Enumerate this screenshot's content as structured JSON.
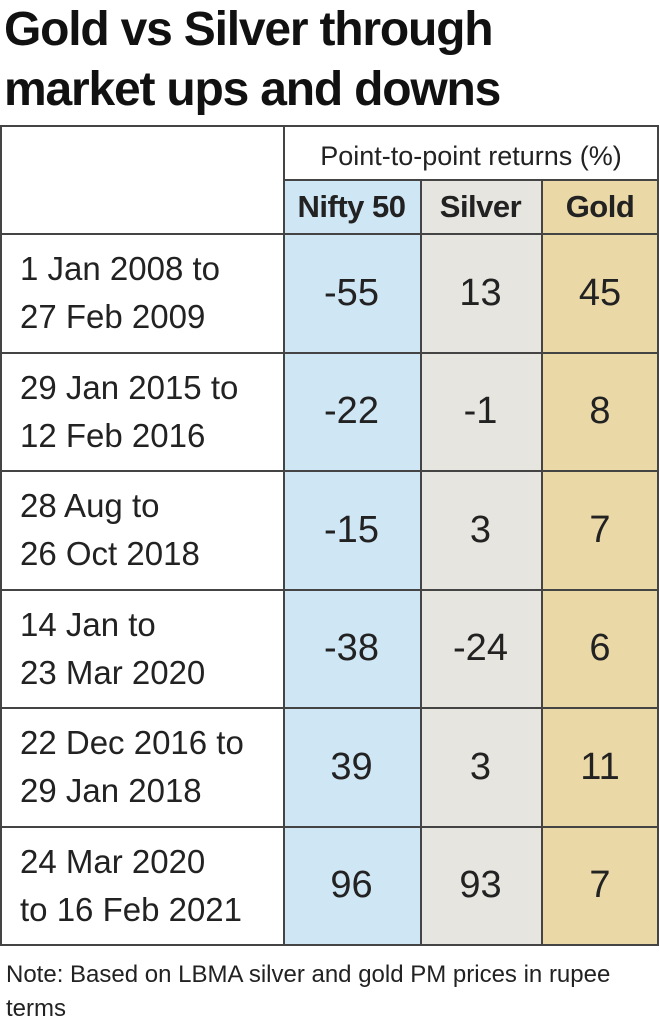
{
  "title": [
    "Gold vs Silver through",
    "market ups and downs"
  ],
  "subheader": "Point-to-point returns (%)",
  "columns": [
    "Nifty 50",
    "Silver",
    "Gold"
  ],
  "colors": {
    "nifty": "#cfe6f5",
    "silver": "#e7e5df",
    "gold": "#ead8a7",
    "border": "#444444"
  },
  "rows": [
    {
      "period": [
        "1 Jan 2008 to",
        "27 Feb 2009"
      ],
      "nifty": "-55",
      "silver": "13",
      "gold": "45"
    },
    {
      "period": [
        "29 Jan 2015 to",
        "12 Feb 2016"
      ],
      "nifty": "-22",
      "silver": "-1",
      "gold": "8"
    },
    {
      "period": [
        "28 Aug to",
        "26 Oct 2018"
      ],
      "nifty": "-15",
      "silver": "3",
      "gold": "7"
    },
    {
      "period": [
        "14 Jan to",
        "23 Mar 2020"
      ],
      "nifty": "-38",
      "silver": "-24",
      "gold": "6"
    },
    {
      "period": [
        "22 Dec 2016 to",
        "29 Jan 2018"
      ],
      "nifty": "39",
      "silver": "3",
      "gold": "11"
    },
    {
      "period": [
        "24 Mar 2020",
        "to 16 Feb 2021"
      ],
      "nifty": "96",
      "silver": "93",
      "gold": "7"
    }
  ],
  "note": "Note: Based on LBMA silver and gold PM prices in rupee terms",
  "chart_data": {
    "type": "table",
    "title": "Gold vs Silver through market ups and downs",
    "subtitle": "Point-to-point returns (%)",
    "columns": [
      "Nifty 50",
      "Silver",
      "Gold"
    ],
    "rows": [
      {
        "period": "1 Jan 2008 to 27 Feb 2009",
        "values": [
          -55,
          13,
          45
        ]
      },
      {
        "period": "29 Jan 2015 to 12 Feb 2016",
        "values": [
          -22,
          -1,
          8
        ]
      },
      {
        "period": "28 Aug to 26 Oct 2018",
        "values": [
          -15,
          3,
          7
        ]
      },
      {
        "period": "14 Jan to 23 Mar 2020",
        "values": [
          -38,
          -24,
          6
        ]
      },
      {
        "period": "22 Dec 2016 to 29 Jan 2018",
        "values": [
          39,
          3,
          11
        ]
      },
      {
        "period": "24 Mar 2020 to 16 Feb 2021",
        "values": [
          96,
          93,
          7
        ]
      }
    ]
  }
}
